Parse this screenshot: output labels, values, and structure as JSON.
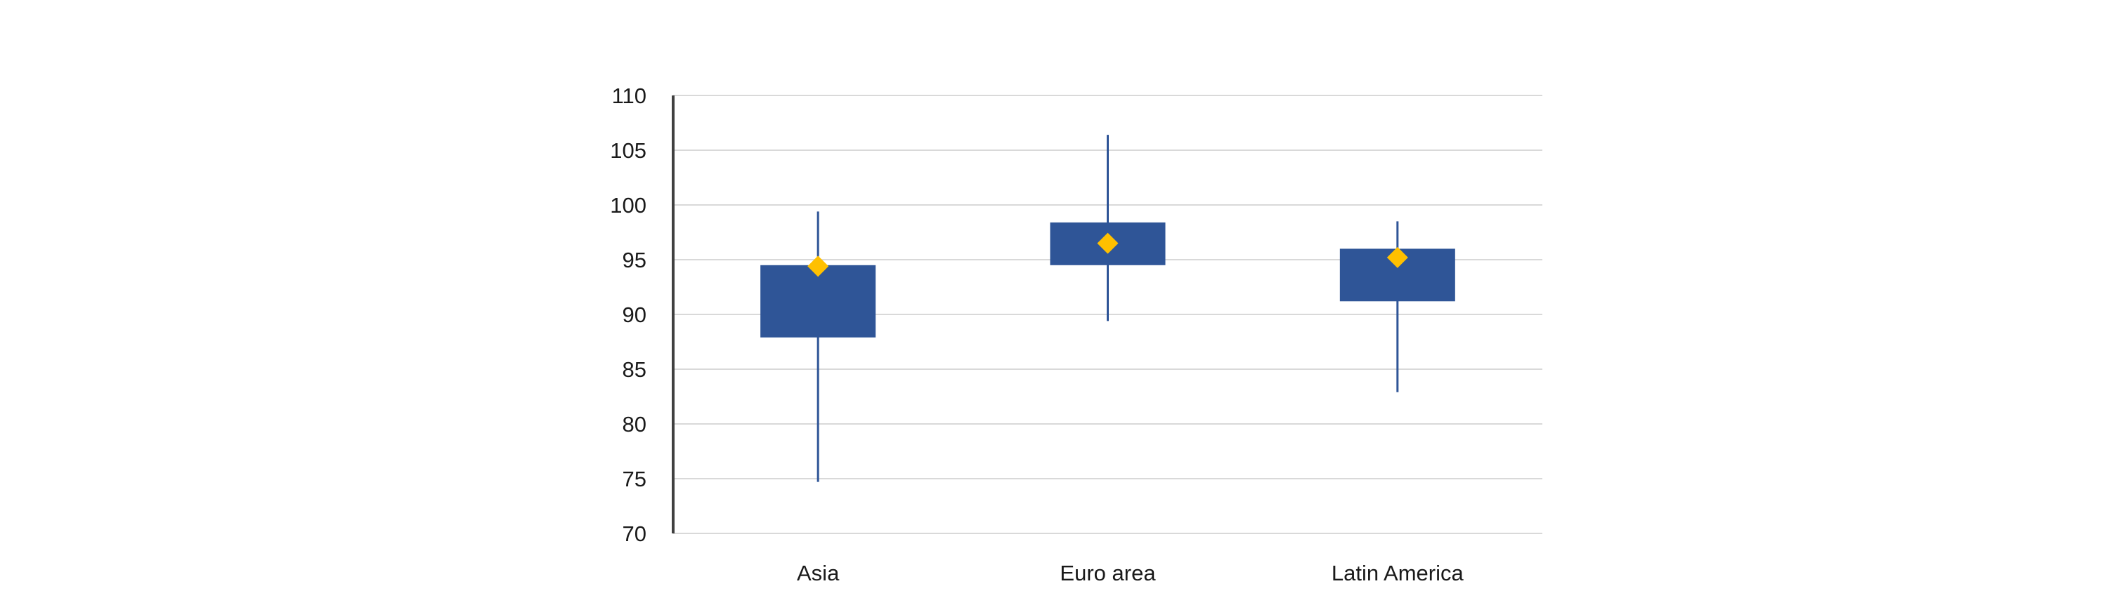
{
  "chart_data": {
    "type": "box",
    "title": "",
    "xlabel": "",
    "ylabel": "",
    "categories": [
      "Asia",
      "Euro area",
      "Latin America"
    ],
    "boxes": [
      {
        "category": "Asia",
        "min": 74.7,
        "q1": 87.9,
        "q3": 94.5,
        "max": 99.4,
        "marker": 94.4
      },
      {
        "category": "Euro area",
        "min": 89.4,
        "q1": 94.5,
        "q3": 98.4,
        "max": 106.4,
        "marker": 96.5
      },
      {
        "category": "Latin America",
        "min": 82.9,
        "q1": 91.2,
        "q3": 96.0,
        "max": 98.5,
        "marker": 95.2
      }
    ],
    "ylim": [
      70,
      110
    ],
    "yticks": [
      70,
      75,
      80,
      85,
      90,
      95,
      100,
      105,
      110
    ],
    "grid": true,
    "legend": "none",
    "colors": {
      "box": "#2F5597",
      "whisker": "#2F5597",
      "marker": "#FFC000",
      "grid": "#D9D9D9",
      "axis": "#404040"
    }
  }
}
